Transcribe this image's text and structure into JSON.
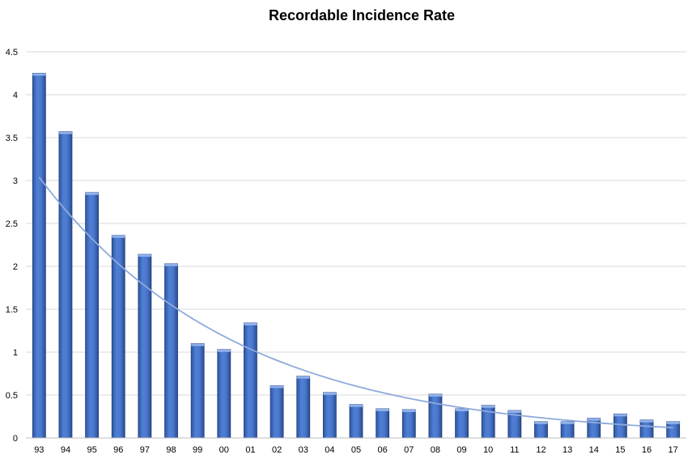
{
  "chart_data": {
    "type": "bar",
    "title": "Recordable Incidence Rate",
    "xlabel": "",
    "ylabel": "",
    "categories": [
      "93",
      "94",
      "95",
      "96",
      "97",
      "98",
      "99",
      "00",
      "01",
      "02",
      "03",
      "04",
      "05",
      "06",
      "07",
      "08",
      "09",
      "10",
      "11",
      "12",
      "13",
      "14",
      "15",
      "16",
      "17"
    ],
    "series": [
      {
        "values": [
          4.25,
          3.57,
          2.86,
          2.36,
          2.14,
          2.03,
          1.1,
          1.03,
          1.34,
          0.61,
          0.72,
          0.53,
          0.39,
          0.34,
          0.33,
          0.51,
          0.34,
          0.38,
          0.32,
          0.19,
          0.19,
          0.23,
          0.28,
          0.21,
          0.19
        ],
        "color": "#4472c4"
      }
    ],
    "trendline": {
      "type": "exponential",
      "color": "#8faadc",
      "start_value": 3.04,
      "end_value": 0.12
    },
    "ylim": [
      0,
      4.5
    ],
    "yticks": [
      "0",
      "0.5",
      "1",
      "1.5",
      "2",
      "2.5",
      "3",
      "3.5",
      "4",
      "4.5"
    ],
    "grid": true,
    "legend": "none"
  }
}
